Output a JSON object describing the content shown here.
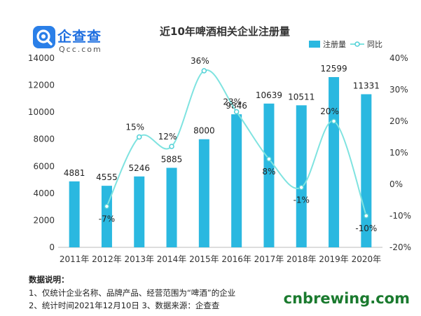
{
  "logo": {
    "text_cn": "企查查",
    "text_en": "Qcc.com",
    "icon": "magnifier-logo-icon"
  },
  "notes": {
    "title": "数据说明：",
    "line1": "1、仅统计企业名称、品牌产品、经营范围为“啤酒”的企业",
    "line2": "2、统计时间2021年12月10日  3、数据来源：企查查"
  },
  "watermark": "cnbrewing.com",
  "colors": {
    "bar": "#2ab8e0",
    "line": "#7fe3e0",
    "marker": "#4fcfd6"
  },
  "chart_data": {
    "type": "bar+line",
    "title": "近10年啤酒相关企业注册量",
    "categories": [
      "2011年",
      "2012年",
      "2013年",
      "2014年",
      "2015年",
      "2016年",
      "2017年",
      "2018年",
      "2019年",
      "2020年"
    ],
    "series": [
      {
        "name": "注册量",
        "type": "bar",
        "axis": "left",
        "values": [
          4881,
          4555,
          5246,
          5885,
          8000,
          9846,
          10639,
          10511,
          12599,
          11331
        ],
        "labels": [
          "4881",
          "4555",
          "5246",
          "5885",
          "8000",
          "9846",
          "10639",
          "10511",
          "12599",
          "11331"
        ]
      },
      {
        "name": "同比",
        "type": "line",
        "axis": "right",
        "values": [
          null,
          -7,
          15,
          12,
          36,
          23,
          8,
          -1,
          20,
          -10
        ],
        "labels": [
          "",
          "-7%",
          "15%",
          "12%",
          "36%",
          "23%",
          "8%",
          "-1%",
          "20%",
          "-10%"
        ]
      }
    ],
    "y_left": {
      "min": 0,
      "max": 14000,
      "ticks": [
        "0",
        "2000",
        "4000",
        "6000",
        "8000",
        "10000",
        "12000",
        "14000"
      ]
    },
    "y_right": {
      "min": -20,
      "max": 40,
      "ticks": [
        "-20%",
        "-10%",
        "0%",
        "10%",
        "20%",
        "30%",
        "40%"
      ]
    },
    "legend": {
      "position": "top-right",
      "items": [
        "注册量",
        "同比"
      ]
    },
    "grid": false
  }
}
